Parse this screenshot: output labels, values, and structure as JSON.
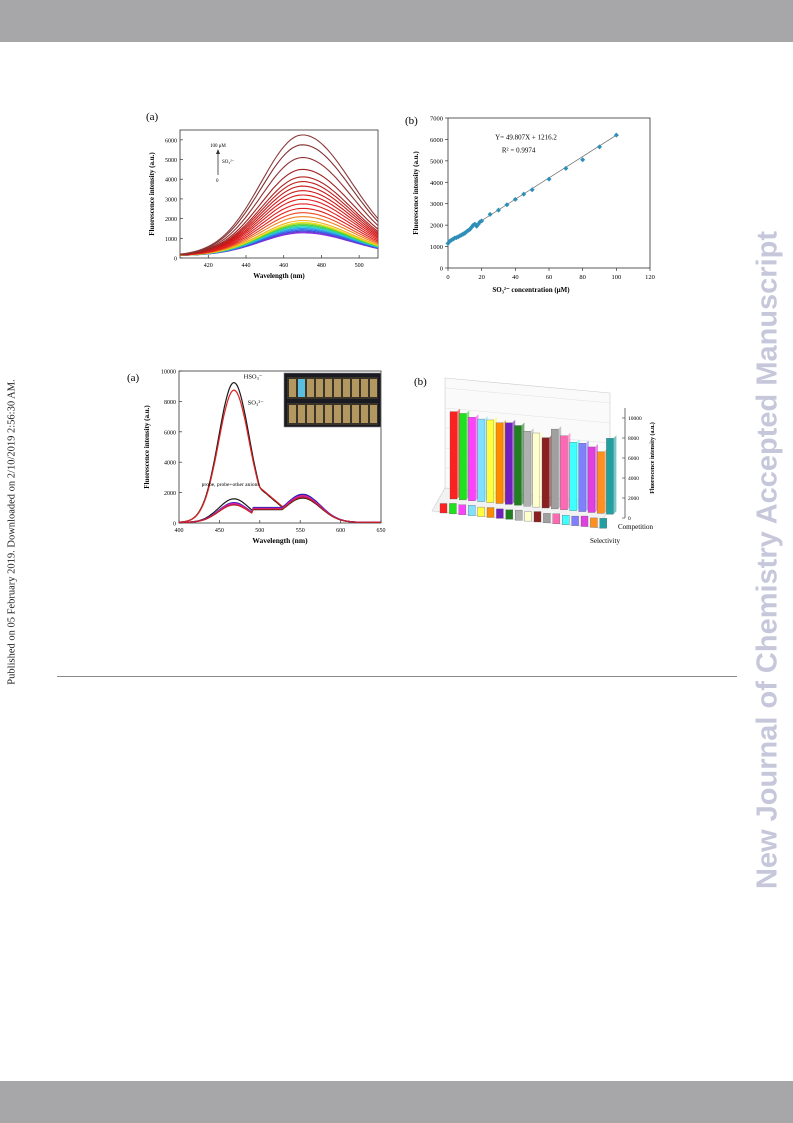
{
  "page": {
    "published_note": "Published on 05 February 2019. Downloaded on 2/10/2019 2:56:30 AM.",
    "journal_watermark": "New Journal of Chemistry Accepted Manuscript"
  },
  "chart_data": [
    {
      "panel": "(a)",
      "type": "line",
      "xlabel": "Wavelength (nm)",
      "ylabel": "Fluorescence intensity (a.u.)",
      "xlim": [
        405,
        510
      ],
      "ylim": [
        0,
        6500
      ],
      "x_ticks": [
        420,
        440,
        460,
        480,
        500
      ],
      "y_ticks": [
        0,
        1000,
        2000,
        3000,
        4000,
        5000,
        6000
      ],
      "annotation_top": "100 μM",
      "annotation_ion": "SO₃²⁻",
      "annotation_bottom": "0",
      "peak_x": 470,
      "peak_values": [
        1280,
        1330,
        1380,
        1440,
        1500,
        1560,
        1620,
        1680,
        1740,
        1800,
        1900,
        2100,
        2300,
        2520,
        2750,
        2980,
        3200,
        3420,
        3650,
        3880,
        4120,
        4500,
        5100,
        5750,
        6250
      ],
      "start_value": 120,
      "end_fraction": 0.42,
      "curve_colors": [
        "#8a2be2",
        "#6a3ad2",
        "#4050e0",
        "#2f6fe8",
        "#2a9ee8",
        "#22c7d8",
        "#2dd38f",
        "#40d040",
        "#9ad820",
        "#e8e020",
        "#f0b020",
        "#f08020",
        "#f04a20",
        "#e02020",
        "#e02020",
        "#e02020",
        "#d81818",
        "#d01818",
        "#c81818",
        "#c02020",
        "#b02020",
        "#a02020",
        "#903030",
        "#803030",
        "#8b3a3a"
      ]
    },
    {
      "panel": "(b)",
      "type": "scatter",
      "xlabel": "SO₃²⁻ concentration (μM)",
      "ylabel": "Fluorescence intensity (a.u.)",
      "xlim": [
        0,
        120
      ],
      "ylim": [
        0,
        7000
      ],
      "x_ticks": [
        0,
        20,
        40,
        60,
        80,
        100,
        120
      ],
      "y_ticks": [
        0,
        1000,
        2000,
        3000,
        4000,
        5000,
        6000,
        7000
      ],
      "equation": "Y= 49.807X + 1216.2",
      "r_squared": "R² = 0.9974",
      "fit": {
        "slope": 49.807,
        "intercept": 1216.2
      },
      "x": [
        0,
        1,
        2,
        3,
        4,
        5,
        6,
        7,
        8,
        9,
        10,
        11,
        12,
        13,
        14,
        15,
        16,
        17,
        18,
        19,
        20,
        25,
        30,
        35,
        40,
        45,
        50,
        60,
        70,
        80,
        90,
        100
      ],
      "y": [
        1150,
        1250,
        1300,
        1350,
        1400,
        1420,
        1450,
        1500,
        1540,
        1580,
        1620,
        1700,
        1750,
        1800,
        1900,
        2000,
        2050,
        1950,
        2050,
        2150,
        2200,
        2500,
        2700,
        2950,
        3200,
        3450,
        3650,
        4150,
        4650,
        5050,
        5650,
        6200
      ],
      "marker_color": "#2e8fb8"
    },
    {
      "panel": "(a)",
      "type": "line",
      "xlabel": "Wavelength (nm)",
      "ylabel": "Fluorescence intensity (a.u.)",
      "xlim": [
        400,
        650
      ],
      "ylim": [
        0,
        10000
      ],
      "x_ticks": [
        400,
        450,
        500,
        550,
        600,
        650
      ],
      "y_ticks": [
        0,
        2000,
        4000,
        6000,
        8000,
        10000
      ],
      "label_hso3": "HSO₃⁻",
      "label_so3": "SO₃²⁻",
      "label_probe": "probe, probe+other anions",
      "series": [
        {
          "name": "HSO₃⁻",
          "color": "#1a1a1a",
          "peak1": 9200,
          "peak2": 1700
        },
        {
          "name": "SO₃²⁻",
          "color": "#e02020",
          "peak1": 8700,
          "peak2": 1800
        },
        {
          "color": "#1a1a1a",
          "peak1": 1550,
          "peak2": 1600
        },
        {
          "color": "#2020c0",
          "peak1": 1300,
          "peak2": 1850
        },
        {
          "color": "#8a20c0",
          "peak1": 1200,
          "peak2": 1700
        },
        {
          "color": "#e020a0",
          "peak1": 1250,
          "peak2": 1750
        },
        {
          "color": "#c02020",
          "peak1": 1150,
          "peak2": 1650
        }
      ]
    },
    {
      "panel": "(b)",
      "type": "bar",
      "zlabel": "Fluorescence intensity (a.u.)",
      "row_labels": [
        "Competition",
        "Selectivity"
      ],
      "z_ticks": [
        0,
        2000,
        4000,
        6000,
        8000,
        10000
      ],
      "competition": [
        9200,
        9100,
        8800,
        8700,
        8700,
        8500,
        8600,
        8400,
        7900,
        7800,
        7400,
        8400,
        7800,
        7200,
        7200,
        6900,
        6500,
        8000
      ],
      "selectivity": [
        1000,
        1100,
        1050,
        1100,
        1000,
        1050,
        1000,
        1000,
        1050,
        1000,
        1100,
        1000,
        1050,
        1000,
        1000,
        1100,
        1000,
        1050
      ],
      "colors": [
        "#ff2020",
        "#20e020",
        "#ff40ff",
        "#80e0ff",
        "#ffff40",
        "#ff8c00",
        "#7020c0",
        "#208020",
        "#b0b0b0",
        "#ffffcc",
        "#8b2020",
        "#a0a0a0",
        "#ff69b4",
        "#40ffff",
        "#8080ff",
        "#e040e0",
        "#ff9020",
        "#20a0a0"
      ]
    }
  ]
}
